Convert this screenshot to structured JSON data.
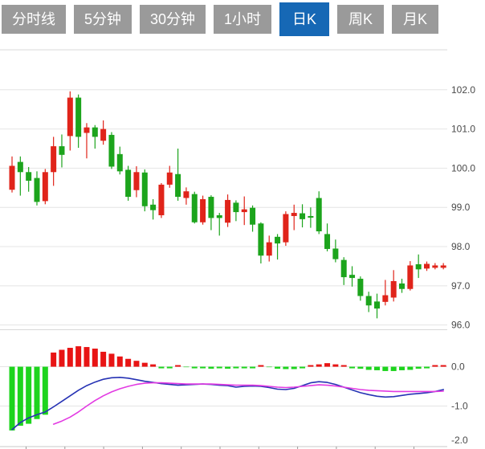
{
  "tabs": {
    "items": [
      {
        "label": "分时线",
        "active": false
      },
      {
        "label": "5分钟",
        "active": false
      },
      {
        "label": "30分钟",
        "active": false
      },
      {
        "label": "1小时",
        "active": false
      },
      {
        "label": "日K",
        "active": true
      },
      {
        "label": "周K",
        "active": false
      },
      {
        "label": "月K",
        "active": false
      }
    ]
  },
  "colors": {
    "tab_bg": "#9a9a9a",
    "tab_active_bg": "#1668b5",
    "tab_text": "#ffffff",
    "up_candle": "#e0241a",
    "down_candle": "#1ca41c",
    "macd_bar_up": "#e81414",
    "macd_bar_down": "#1dd41d",
    "dif_line": "#2632b4",
    "dea_line": "#e23ae2",
    "gridline": "#e4e4e4",
    "panel_border": "#d8d8d8",
    "axis_line": "#c8c8c8",
    "axis_text": "#4a4a4a",
    "background": "#ffffff"
  },
  "chart_data": {
    "type": "candlestick_with_macd",
    "legend_position": "none",
    "grid": true,
    "main_panel": {
      "ylabel": "",
      "ylim": [
        95.88,
        103.02
      ],
      "y_ticks": [
        {
          "label": "102.0",
          "value": 102.0
        },
        {
          "label": "101.0",
          "value": 101.0
        },
        {
          "label": "100.0",
          "value": 100.0
        },
        {
          "label": "99.0",
          "value": 99.0
        },
        {
          "label": "98.0",
          "value": 98.0
        },
        {
          "label": "97.0",
          "value": 97.0
        },
        {
          "label": "96.0",
          "value": 96.0
        }
      ],
      "candles_ohlc": [
        [
          99.45,
          100.3,
          99.38,
          100.06
        ],
        [
          100.16,
          100.3,
          99.3,
          99.9
        ],
        [
          99.9,
          100.03,
          99.4,
          99.68
        ],
        [
          99.75,
          99.92,
          99.05,
          99.14
        ],
        [
          99.16,
          99.98,
          99.08,
          99.9
        ],
        [
          99.9,
          100.8,
          99.55,
          100.56
        ],
        [
          100.56,
          100.86,
          100.02,
          100.34
        ],
        [
          100.82,
          101.96,
          100.45,
          101.8
        ],
        [
          101.8,
          101.88,
          100.52,
          100.8
        ],
        [
          100.9,
          101.15,
          100.25,
          101.04
        ],
        [
          101.04,
          101.1,
          100.5,
          100.8
        ],
        [
          100.7,
          101.22,
          100.6,
          101.0
        ],
        [
          100.85,
          100.92,
          99.98,
          100.04
        ],
        [
          100.36,
          100.55,
          99.84,
          99.92
        ],
        [
          99.96,
          100.06,
          99.17,
          99.27
        ],
        [
          99.44,
          100.05,
          99.26,
          99.9
        ],
        [
          99.89,
          99.97,
          98.9,
          99.03
        ],
        [
          99.07,
          99.21,
          98.69,
          98.93
        ],
        [
          98.8,
          99.62,
          98.73,
          99.58
        ],
        [
          99.58,
          100.06,
          99.5,
          99.89
        ],
        [
          99.85,
          100.5,
          99.17,
          99.27
        ],
        [
          99.24,
          99.51,
          99.07,
          99.41
        ],
        [
          99.34,
          99.4,
          98.59,
          98.62
        ],
        [
          98.62,
          99.3,
          98.56,
          99.21
        ],
        [
          99.27,
          99.31,
          98.42,
          98.73
        ],
        [
          98.8,
          98.86,
          98.28,
          98.73
        ],
        [
          98.61,
          99.33,
          98.5,
          99.19
        ],
        [
          99.12,
          99.18,
          98.65,
          98.88
        ],
        [
          98.88,
          99.28,
          98.55,
          98.95
        ],
        [
          98.99,
          99.05,
          98.38,
          98.56
        ],
        [
          98.59,
          98.62,
          97.57,
          97.77
        ],
        [
          97.77,
          98.28,
          97.62,
          98.11
        ],
        [
          98.25,
          98.32,
          97.67,
          98.08
        ],
        [
          98.11,
          98.9,
          98.02,
          98.83
        ],
        [
          98.78,
          99.07,
          98.42,
          98.86
        ],
        [
          98.85,
          99.08,
          98.49,
          98.7
        ],
        [
          98.78,
          99.0,
          98.48,
          98.74
        ],
        [
          99.24,
          99.41,
          98.32,
          98.39
        ],
        [
          98.32,
          98.59,
          97.88,
          97.94
        ],
        [
          97.95,
          98.18,
          97.6,
          97.68
        ],
        [
          97.66,
          97.73,
          97.02,
          97.22
        ],
        [
          97.28,
          97.5,
          96.98,
          97.2
        ],
        [
          97.18,
          97.24,
          96.62,
          96.74
        ],
        [
          96.74,
          96.85,
          96.33,
          96.5
        ],
        [
          96.6,
          96.8,
          96.17,
          96.42
        ],
        [
          96.59,
          97.15,
          96.5,
          96.76
        ],
        [
          96.7,
          97.4,
          96.6,
          97.12
        ],
        [
          97.06,
          97.18,
          96.82,
          96.92
        ],
        [
          96.92,
          97.63,
          96.88,
          97.52
        ],
        [
          97.55,
          97.8,
          97.2,
          97.42
        ],
        [
          97.44,
          97.62,
          97.38,
          97.56
        ],
        [
          97.46,
          97.58,
          97.42,
          97.52
        ],
        [
          97.46,
          97.58,
          97.42,
          97.52
        ]
      ]
    },
    "macd_panel": {
      "ylabel": "",
      "ylim": [
        -2.03,
        0.94
      ],
      "y_ticks": [
        {
          "label": "0.0",
          "value": 0.0
        },
        {
          "label": "-1.0",
          "value": -1.0
        },
        {
          "label": "-2.0",
          "value": -2.0
        }
      ],
      "histogram": [
        -1.62,
        -1.5,
        -1.45,
        -1.33,
        -1.22,
        0.36,
        0.43,
        0.48,
        0.52,
        0.5,
        0.46,
        0.38,
        0.33,
        0.26,
        0.2,
        0.15,
        0.1,
        0.06,
        -0.03,
        -0.04,
        0.02,
        -0.01,
        -0.02,
        -0.04,
        -0.05,
        -0.04,
        -0.05,
        -0.04,
        -0.04,
        -0.02,
        0.02,
        -0.01,
        -0.05,
        -0.06,
        -0.06,
        -0.02,
        0.04,
        0.06,
        0.09,
        0.06,
        0.03,
        -0.02,
        -0.05,
        -0.08,
        -0.09,
        -0.11,
        -0.11,
        -0.09,
        -0.08,
        -0.05,
        -0.02,
        0.03,
        0.04
      ],
      "dif_line": [
        -1.6,
        -1.42,
        -1.3,
        -1.22,
        -1.15,
        -1.02,
        -0.88,
        -0.74,
        -0.6,
        -0.48,
        -0.39,
        -0.32,
        -0.28,
        -0.27,
        -0.29,
        -0.33,
        -0.37,
        -0.4,
        -0.43,
        -0.45,
        -0.47,
        -0.46,
        -0.45,
        -0.44,
        -0.45,
        -0.47,
        -0.48,
        -0.52,
        -0.5,
        -0.49,
        -0.5,
        -0.53,
        -0.57,
        -0.58,
        -0.55,
        -0.48,
        -0.41,
        -0.38,
        -0.4,
        -0.45,
        -0.52,
        -0.59,
        -0.66,
        -0.71,
        -0.75,
        -0.77,
        -0.76,
        -0.73,
        -0.7,
        -0.68,
        -0.66,
        -0.63,
        -0.58
      ],
      "dea_line": [
        null,
        null,
        null,
        null,
        null,
        -1.46,
        -1.38,
        -1.28,
        -1.15,
        -1.0,
        -0.86,
        -0.74,
        -0.64,
        -0.56,
        -0.5,
        -0.45,
        -0.42,
        -0.41,
        -0.41,
        -0.42,
        -0.43,
        -0.44,
        -0.44,
        -0.44,
        -0.44,
        -0.45,
        -0.46,
        -0.47,
        -0.47,
        -0.47,
        -0.48,
        -0.5,
        -0.52,
        -0.53,
        -0.52,
        -0.5,
        -0.48,
        -0.46,
        -0.47,
        -0.49,
        -0.52,
        -0.55,
        -0.58,
        -0.6,
        -0.61,
        -0.62,
        -0.63,
        -0.63,
        -0.63,
        -0.63,
        -0.63,
        -0.63,
        -0.62
      ]
    }
  }
}
